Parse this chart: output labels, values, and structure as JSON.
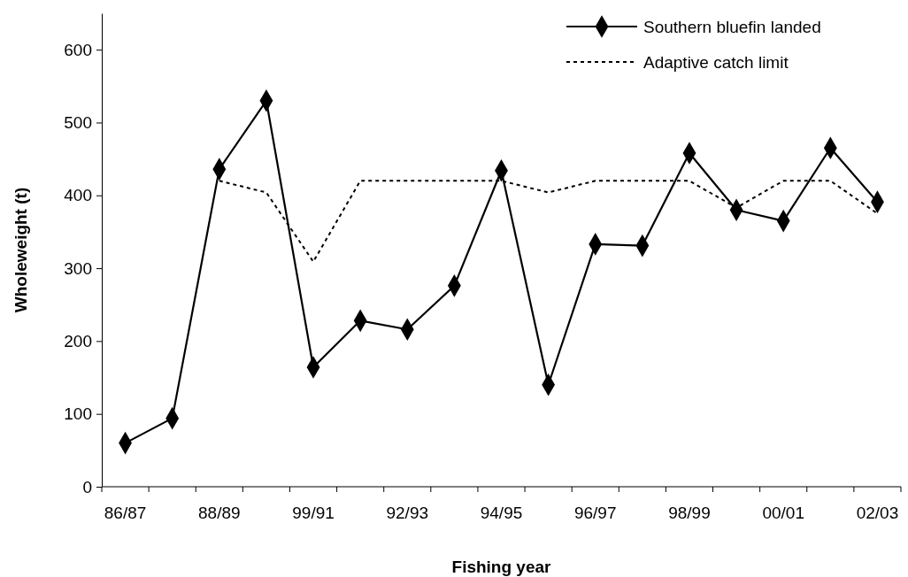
{
  "chart_data": {
    "type": "line",
    "xlabel": "Fishing year",
    "ylabel": "Wholeweight (t)",
    "categories": [
      "86/87",
      null,
      "88/89",
      null,
      "99/91",
      null,
      "92/93",
      null,
      "94/95",
      null,
      "96/97",
      null,
      "98/99",
      null,
      "00/01",
      null,
      "02/03"
    ],
    "series": [
      {
        "name": "Southern bluefin landed",
        "color": "#000000",
        "marker": "diamond",
        "line_style": "solid",
        "values": [
          60,
          94,
          436,
          530,
          164,
          228,
          216,
          276,
          434,
          140,
          333,
          331,
          458,
          380,
          365,
          465,
          391
        ]
      },
      {
        "name": "Adaptive catch limit",
        "color": "#000000",
        "marker": "none",
        "line_style": "dotted",
        "values": [
          null,
          null,
          420,
          404,
          309,
          420,
          420,
          420,
          420,
          404,
          420,
          420,
          420,
          383,
          420,
          420,
          375
        ]
      }
    ],
    "ylim": [
      0,
      650
    ],
    "yticks": [
      0,
      100,
      200,
      300,
      400,
      500,
      600
    ],
    "grid": false,
    "legend": "top right"
  }
}
